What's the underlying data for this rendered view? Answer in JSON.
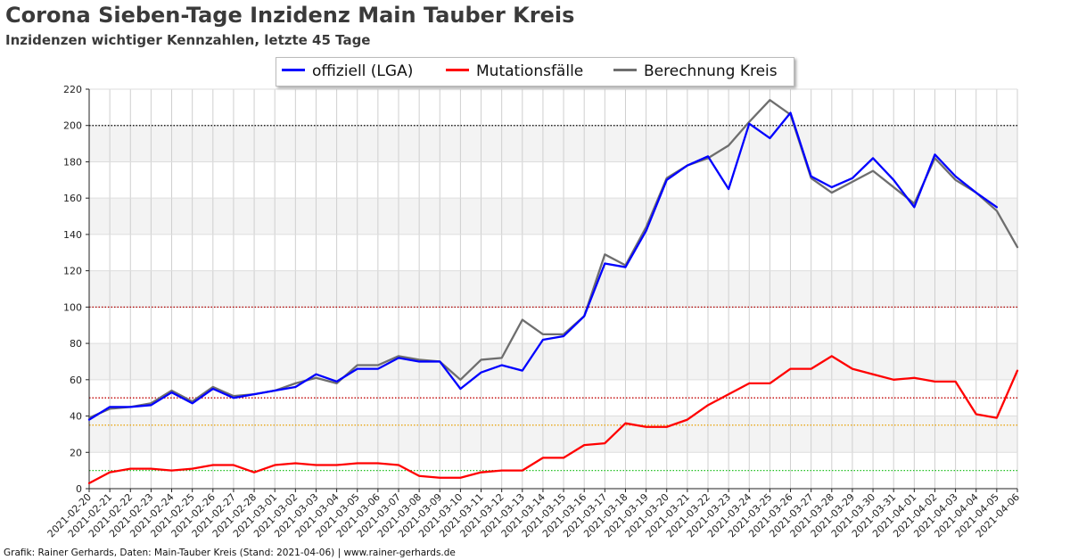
{
  "title": "Corona Sieben-Tage Inzidenz Main Tauber Kreis",
  "subtitle": "Inzidenzen wichtiger Kennzahlen, letzte 45 Tage",
  "credit": "Grafik: Rainer Gerhards, Daten: Main-Tauber Kreis (Stand: 2021-04-06) | www.rainer-gerhards.de",
  "colors": {
    "official": "#0000ff",
    "mutation": "#ff0000",
    "county": "#6e6e6e",
    "threshold_200": "#000000",
    "threshold_100": "#b00000",
    "threshold_50": "#c00000",
    "threshold_35": "#e8a000",
    "threshold_10": "#22c022"
  },
  "chart_data": {
    "type": "line",
    "ylim": [
      0,
      220
    ],
    "yticks": [
      0,
      20,
      40,
      60,
      80,
      100,
      120,
      140,
      160,
      180,
      200,
      220
    ],
    "grid": true,
    "legend_position": "top-center",
    "reference_lines": [
      200,
      100,
      50,
      35,
      10
    ],
    "categories": [
      "2021-02-20",
      "2021-02-21",
      "2021-02-22",
      "2021-02-23",
      "2021-02-24",
      "2021-02-25",
      "2021-02-26",
      "2021-02-27",
      "2021-02-28",
      "2021-03-01",
      "2021-03-02",
      "2021-03-03",
      "2021-03-04",
      "2021-03-05",
      "2021-03-06",
      "2021-03-07",
      "2021-03-08",
      "2021-03-09",
      "2021-03-10",
      "2021-03-11",
      "2021-03-12",
      "2021-03-13",
      "2021-03-14",
      "2021-03-15",
      "2021-03-16",
      "2021-03-17",
      "2021-03-18",
      "2021-03-19",
      "2021-03-20",
      "2021-03-21",
      "2021-03-22",
      "2021-03-23",
      "2021-03-24",
      "2021-03-25",
      "2021-03-26",
      "2021-03-27",
      "2021-03-28",
      "2021-03-29",
      "2021-03-30",
      "2021-03-31",
      "2021-04-01",
      "2021-04-02",
      "2021-04-03",
      "2021-04-04",
      "2021-04-05",
      "2021-04-06"
    ],
    "series": [
      {
        "name": "offiziell (LGA)",
        "color_key": "official",
        "values": [
          38,
          45,
          45,
          46,
          53,
          47,
          55,
          50,
          52,
          54,
          56,
          63,
          59,
          66,
          66,
          72,
          70,
          70,
          55,
          64,
          68,
          65,
          82,
          84,
          95,
          124,
          122,
          142,
          170,
          178,
          183,
          165,
          201,
          193,
          207,
          172,
          166,
          171,
          182,
          170,
          155,
          184,
          172,
          163,
          155,
          null
        ]
      },
      {
        "name": "Mutationsfälle",
        "color_key": "mutation",
        "values": [
          3,
          9,
          11,
          11,
          10,
          11,
          13,
          13,
          9,
          13,
          14,
          13,
          13,
          14,
          14,
          13,
          7,
          6,
          6,
          9,
          10,
          10,
          17,
          17,
          24,
          25,
          36,
          34,
          34,
          38,
          46,
          52,
          58,
          58,
          66,
          66,
          73,
          66,
          63,
          60,
          61,
          59,
          59,
          41,
          39,
          65
        ]
      },
      {
        "name": "Berechnung Kreis",
        "color_key": "county",
        "values": [
          39,
          44,
          45,
          47,
          54,
          48,
          56,
          51,
          52,
          54,
          58,
          61,
          58,
          68,
          68,
          73,
          71,
          70,
          60,
          71,
          72,
          93,
          85,
          85,
          95,
          129,
          123,
          144,
          171,
          178,
          182,
          189,
          202,
          214,
          206,
          171,
          163,
          169,
          175,
          166,
          157,
          182,
          170,
          163,
          153,
          133
        ]
      }
    ]
  }
}
